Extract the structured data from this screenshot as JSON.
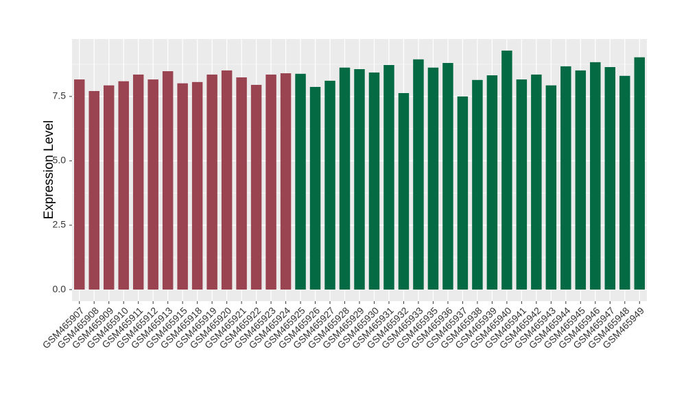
{
  "chart_data": {
    "type": "bar",
    "y_label": "Expression Level",
    "categories": [
      "GSM465907",
      "GSM465908",
      "GSM465909",
      "GSM465910",
      "GSM465911",
      "GSM465912",
      "GSM465913",
      "GSM465915",
      "GSM465918",
      "GSM465919",
      "GSM465920",
      "GSM465921",
      "GSM465922",
      "GSM465923",
      "GSM465924",
      "GSM465925",
      "GSM465926",
      "GSM465927",
      "GSM465928",
      "GSM465929",
      "GSM465930",
      "GSM465931",
      "GSM465932",
      "GSM465933",
      "GSM465935",
      "GSM465936",
      "GSM465937",
      "GSM465938",
      "GSM465939",
      "GSM465940",
      "GSM465941",
      "GSM465942",
      "GSM465943",
      "GSM465944",
      "GSM465945",
      "GSM465946",
      "GSM465947",
      "GSM465948",
      "GSM465949"
    ],
    "values": [
      8.16,
      7.71,
      7.93,
      8.09,
      8.35,
      8.16,
      8.48,
      8.01,
      8.06,
      8.35,
      8.51,
      8.24,
      7.95,
      8.35,
      8.4,
      8.38,
      7.87,
      8.11,
      8.62,
      8.56,
      8.43,
      8.72,
      7.63,
      8.94,
      8.62,
      8.8,
      7.5,
      8.14,
      8.32,
      9.28,
      8.16,
      8.35,
      7.93,
      8.67,
      8.51,
      8.83,
      8.64,
      8.3,
      9.02
    ],
    "colors": [
      "#9b4451",
      "#9b4451",
      "#9b4451",
      "#9b4451",
      "#9b4451",
      "#9b4451",
      "#9b4451",
      "#9b4451",
      "#9b4451",
      "#9b4451",
      "#9b4451",
      "#9b4451",
      "#9b4451",
      "#9b4451",
      "#9b4451",
      "#046a43",
      "#046a43",
      "#046a43",
      "#046a43",
      "#046a43",
      "#046a43",
      "#046a43",
      "#046a43",
      "#046a43",
      "#046a43",
      "#046a43",
      "#046a43",
      "#046a43",
      "#046a43",
      "#046a43",
      "#046a43",
      "#046a43",
      "#046a43",
      "#046a43",
      "#046a43",
      "#046a43",
      "#046a43",
      "#046a43",
      "#046a43"
    ],
    "ylim": [
      -0.45,
      9.73
    ],
    "yticks": [
      {
        "value": 0,
        "label": "0.0"
      },
      2.5,
      {
        "value": 5,
        "label": "5.0"
      },
      7.5
    ],
    "grid": true,
    "minor_grid": true
  }
}
